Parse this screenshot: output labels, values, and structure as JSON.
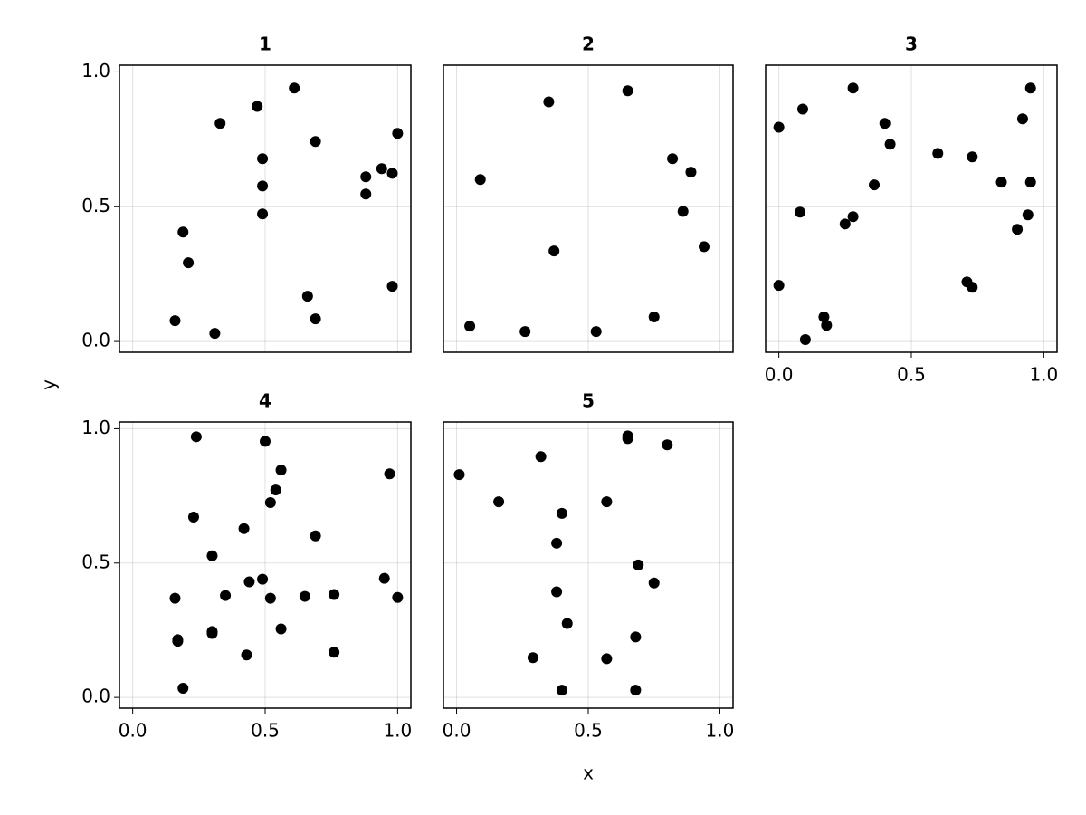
{
  "xlabel": "x",
  "ylabel": "y",
  "chart_data": [
    {
      "type": "scatter",
      "title": "1",
      "color": "#000000",
      "grid": true,
      "show_xtick_labels": false,
      "show_ytick_labels": true,
      "xlim": [
        -0.05,
        1.05
      ],
      "ylim": [
        -0.04,
        1.025
      ],
      "xticks": [
        {
          "value": 0,
          "label": "0.0"
        },
        0.5,
        {
          "value": 1,
          "label": "1.0"
        }
      ],
      "yticks": [
        {
          "value": 0,
          "label": "0.0"
        },
        0.5,
        {
          "value": 1,
          "label": "1.0"
        }
      ],
      "x": [
        0.16,
        0.19,
        0.21,
        0.31,
        0.33,
        0.47,
        0.49,
        0.49,
        0.49,
        0.61,
        0.66,
        0.69,
        0.69,
        0.88,
        0.88,
        0.94,
        0.98,
        0.98,
        1.0
      ],
      "y": [
        0.077,
        0.406,
        0.292,
        0.03,
        0.809,
        0.872,
        0.678,
        0.577,
        0.473,
        0.94,
        0.168,
        0.084,
        0.742,
        0.611,
        0.547,
        0.641,
        0.624,
        0.205,
        0.772
      ]
    },
    {
      "type": "scatter",
      "title": "2",
      "color": "#000000",
      "grid": true,
      "show_xtick_labels": false,
      "show_ytick_labels": false,
      "xlim": [
        -0.05,
        1.05
      ],
      "ylim": [
        -0.04,
        1.025
      ],
      "xticks": [
        {
          "value": 0,
          "label": "0.0"
        },
        0.5,
        {
          "value": 1,
          "label": "1.0"
        }
      ],
      "yticks": [
        {
          "value": 0,
          "label": "0.0"
        },
        0.5,
        {
          "value": 1,
          "label": "1.0"
        }
      ],
      "x": [
        0.05,
        0.09,
        0.26,
        0.35,
        0.37,
        0.53,
        0.65,
        0.75,
        0.82,
        0.86,
        0.89,
        0.94
      ],
      "y": [
        0.057,
        0.601,
        0.037,
        0.889,
        0.336,
        0.037,
        0.93,
        0.091,
        0.678,
        0.483,
        0.628,
        0.352
      ]
    },
    {
      "type": "scatter",
      "title": "3",
      "color": "#000000",
      "grid": true,
      "show_xtick_labels": true,
      "show_ytick_labels": false,
      "xlim": [
        -0.05,
        1.05
      ],
      "ylim": [
        -0.04,
        1.025
      ],
      "xticks": [
        {
          "value": 0,
          "label": "0.0"
        },
        0.5,
        {
          "value": 1,
          "label": "1.0"
        }
      ],
      "yticks": [
        {
          "value": 0,
          "label": "0.0"
        },
        0.5,
        {
          "value": 1,
          "label": "1.0"
        }
      ],
      "x": [
        0.0,
        0.0,
        0.09,
        0.08,
        0.1,
        0.17,
        0.18,
        0.25,
        0.28,
        0.28,
        0.36,
        0.4,
        0.42,
        0.6,
        0.71,
        0.73,
        0.73,
        0.84,
        0.9,
        0.92,
        0.94,
        0.95,
        0.95
      ],
      "y": [
        0.795,
        0.208,
        0.862,
        0.48,
        0.007,
        0.091,
        0.06,
        0.436,
        0.94,
        0.463,
        0.581,
        0.809,
        0.732,
        0.698,
        0.221,
        0.201,
        0.685,
        0.591,
        0.416,
        0.826,
        0.47,
        0.94,
        0.591
      ]
    },
    {
      "type": "scatter",
      "title": "4",
      "color": "#000000",
      "grid": true,
      "show_xtick_labels": true,
      "show_ytick_labels": true,
      "xlim": [
        -0.05,
        1.05
      ],
      "ylim": [
        -0.04,
        1.025
      ],
      "xticks": [
        {
          "value": 0,
          "label": "0.0"
        },
        0.5,
        {
          "value": 1,
          "label": "1.0"
        }
      ],
      "yticks": [
        {
          "value": 0,
          "label": "0.0"
        },
        0.5,
        {
          "value": 1,
          "label": "1.0"
        }
      ],
      "x": [
        0.16,
        0.17,
        0.17,
        0.19,
        0.24,
        0.23,
        0.3,
        0.3,
        0.3,
        0.35,
        0.42,
        0.43,
        0.44,
        0.49,
        0.5,
        0.52,
        0.52,
        0.54,
        0.56,
        0.56,
        0.65,
        0.69,
        0.76,
        0.76,
        0.95,
        0.97,
        1.0
      ],
      "y": [
        0.369,
        0.215,
        0.209,
        0.034,
        0.97,
        0.671,
        0.527,
        0.245,
        0.238,
        0.379,
        0.628,
        0.158,
        0.43,
        0.44,
        0.953,
        0.369,
        0.725,
        0.772,
        0.846,
        0.255,
        0.376,
        0.601,
        0.383,
        0.168,
        0.443,
        0.832,
        0.372
      ]
    },
    {
      "type": "scatter",
      "title": "5",
      "color": "#000000",
      "grid": true,
      "show_xtick_labels": true,
      "show_ytick_labels": false,
      "xlim": [
        -0.05,
        1.05
      ],
      "ylim": [
        -0.04,
        1.025
      ],
      "xticks": [
        {
          "value": 0,
          "label": "0.0"
        },
        0.5,
        {
          "value": 1,
          "label": "1.0"
        }
      ],
      "yticks": [
        {
          "value": 0,
          "label": "0.0"
        },
        0.5,
        {
          "value": 1,
          "label": "1.0"
        }
      ],
      "x": [
        0.01,
        0.16,
        0.29,
        0.32,
        0.38,
        0.38,
        0.4,
        0.4,
        0.42,
        0.57,
        0.57,
        0.65,
        0.65,
        0.68,
        0.69,
        0.68,
        0.75,
        0.8
      ],
      "y": [
        0.829,
        0.728,
        0.148,
        0.896,
        0.393,
        0.574,
        0.685,
        0.027,
        0.275,
        0.144,
        0.728,
        0.973,
        0.963,
        0.225,
        0.493,
        0.027,
        0.426,
        0.94
      ]
    }
  ]
}
